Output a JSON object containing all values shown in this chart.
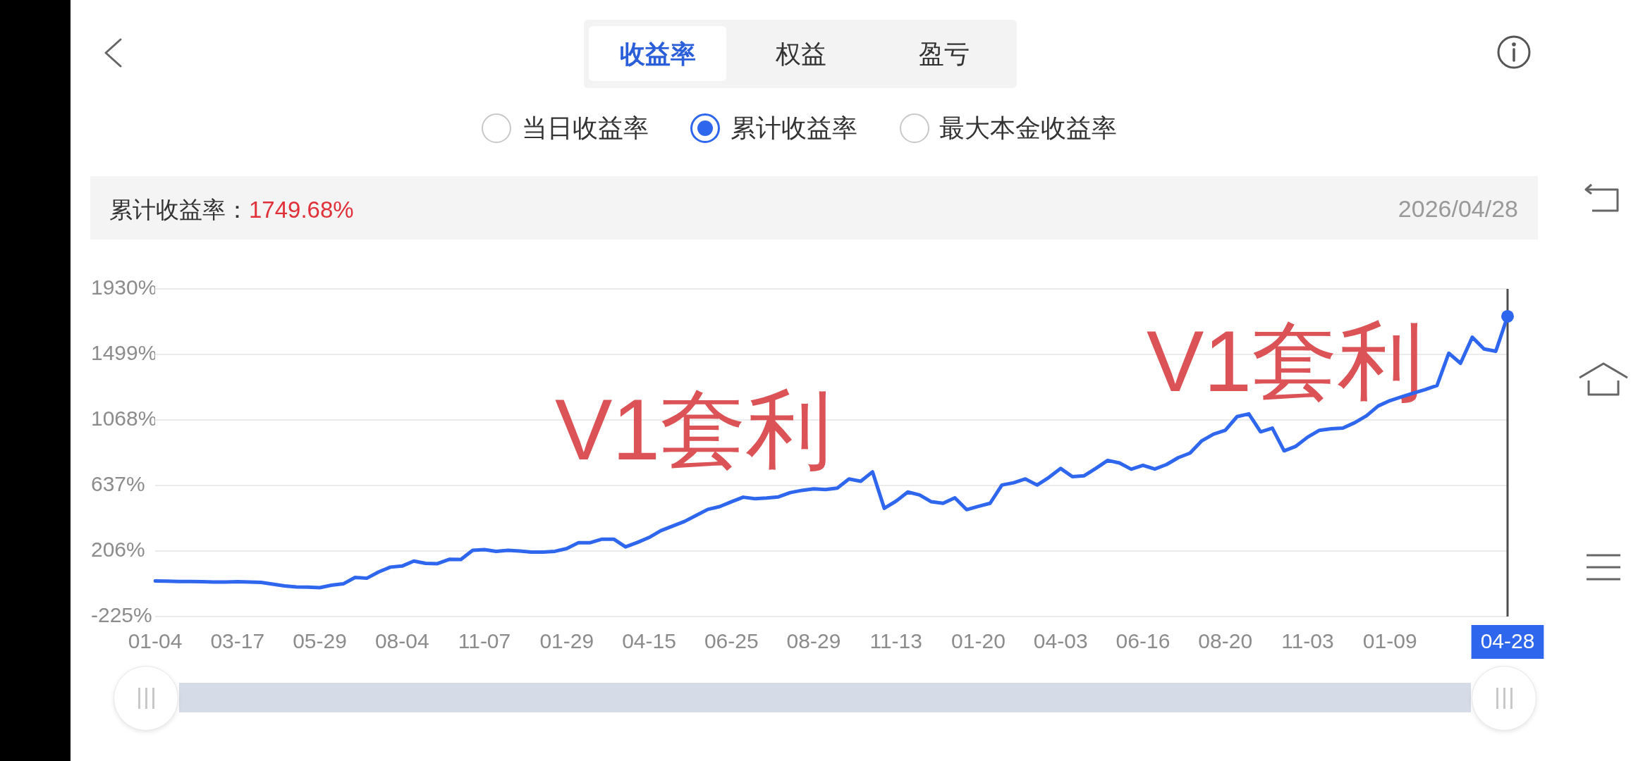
{
  "chart_data": {
    "type": "line",
    "title": "累计收益率：",
    "subtitle": "2026/04/28",
    "categories": [
      "01-04",
      null,
      null,
      null,
      null,
      null,
      null,
      "03-17",
      null,
      null,
      null,
      null,
      null,
      null,
      "05-29",
      null,
      null,
      null,
      null,
      null,
      null,
      "08-04",
      null,
      null,
      null,
      null,
      null,
      null,
      "11-07",
      null,
      null,
      null,
      null,
      null,
      null,
      "01-29",
      null,
      null,
      null,
      null,
      null,
      null,
      "04-15",
      null,
      null,
      null,
      null,
      null,
      null,
      "06-25",
      null,
      null,
      null,
      null,
      null,
      null,
      "08-29",
      null,
      null,
      null,
      null,
      null,
      null,
      "11-13",
      null,
      null,
      null,
      null,
      null,
      null,
      "01-20",
      null,
      null,
      null,
      null,
      null,
      null,
      "04-03",
      null,
      null,
      null,
      null,
      null,
      null,
      "06-16",
      null,
      null,
      null,
      null,
      null,
      null,
      "08-20",
      null,
      null,
      null,
      null,
      null,
      null,
      "11-03",
      null,
      null,
      null,
      null,
      null,
      null,
      "01-09",
      null,
      null,
      null,
      null,
      null,
      null,
      null,
      null,
      null,
      "04-28"
    ],
    "values": [
      9,
      8,
      6,
      5,
      4,
      2,
      2,
      4,
      2,
      0,
      -12,
      -23,
      -30,
      -32,
      -35,
      -19,
      -10,
      32,
      27,
      68,
      100,
      107,
      140,
      125,
      123,
      151,
      150,
      211,
      215,
      204,
      211,
      206,
      199,
      199,
      204,
      222,
      261,
      261,
      284,
      284,
      233,
      262,
      295,
      340,
      370,
      400,
      440,
      480,
      498,
      530,
      560,
      550,
      555,
      562,
      590,
      605,
      615,
      610,
      620,
      680,
      665,
      727,
      487,
      534,
      594,
      575,
      530,
      520,
      556,
      478,
      500,
      520,
      640,
      655,
      680,
      640,
      690,
      749,
      695,
      701,
      750,
      802,
      785,
      744,
      770,
      745,
      775,
      820,
      850,
      931,
      975,
      1000,
      1090,
      1108,
      990,
      1014,
      865,
      895,
      955,
      1000,
      1010,
      1015,
      1050,
      1095,
      1160,
      1195,
      1220,
      1245,
      1268,
      1295,
      1507,
      1441,
      1612,
      1535,
      1520,
      1749.68
    ],
    "color": "#2f66ee",
    "ylim": [
      -225,
      1930
    ],
    "yticks": [
      {
        "value": -225,
        "label": "-225%"
      },
      {
        "value": 206,
        "label": "206%"
      },
      {
        "value": 637,
        "label": "637%"
      },
      {
        "value": 1068,
        "label": "1068%"
      },
      {
        "value": 1499,
        "label": "1499%"
      },
      {
        "value": 1930,
        "label": "1930%"
      }
    ],
    "grid": "y",
    "marker": "none",
    "ref_lines": [
      {
        "axis": "x",
        "value": "04-28",
        "color": "#4d4d4d"
      }
    ],
    "annotations": [
      "收益率",
      "权益",
      "盈亏",
      "当日收益率",
      "累计收益率",
      "最大本金收益率",
      "1749.68%",
      "V1套利",
      "V1套利"
    ]
  }
}
